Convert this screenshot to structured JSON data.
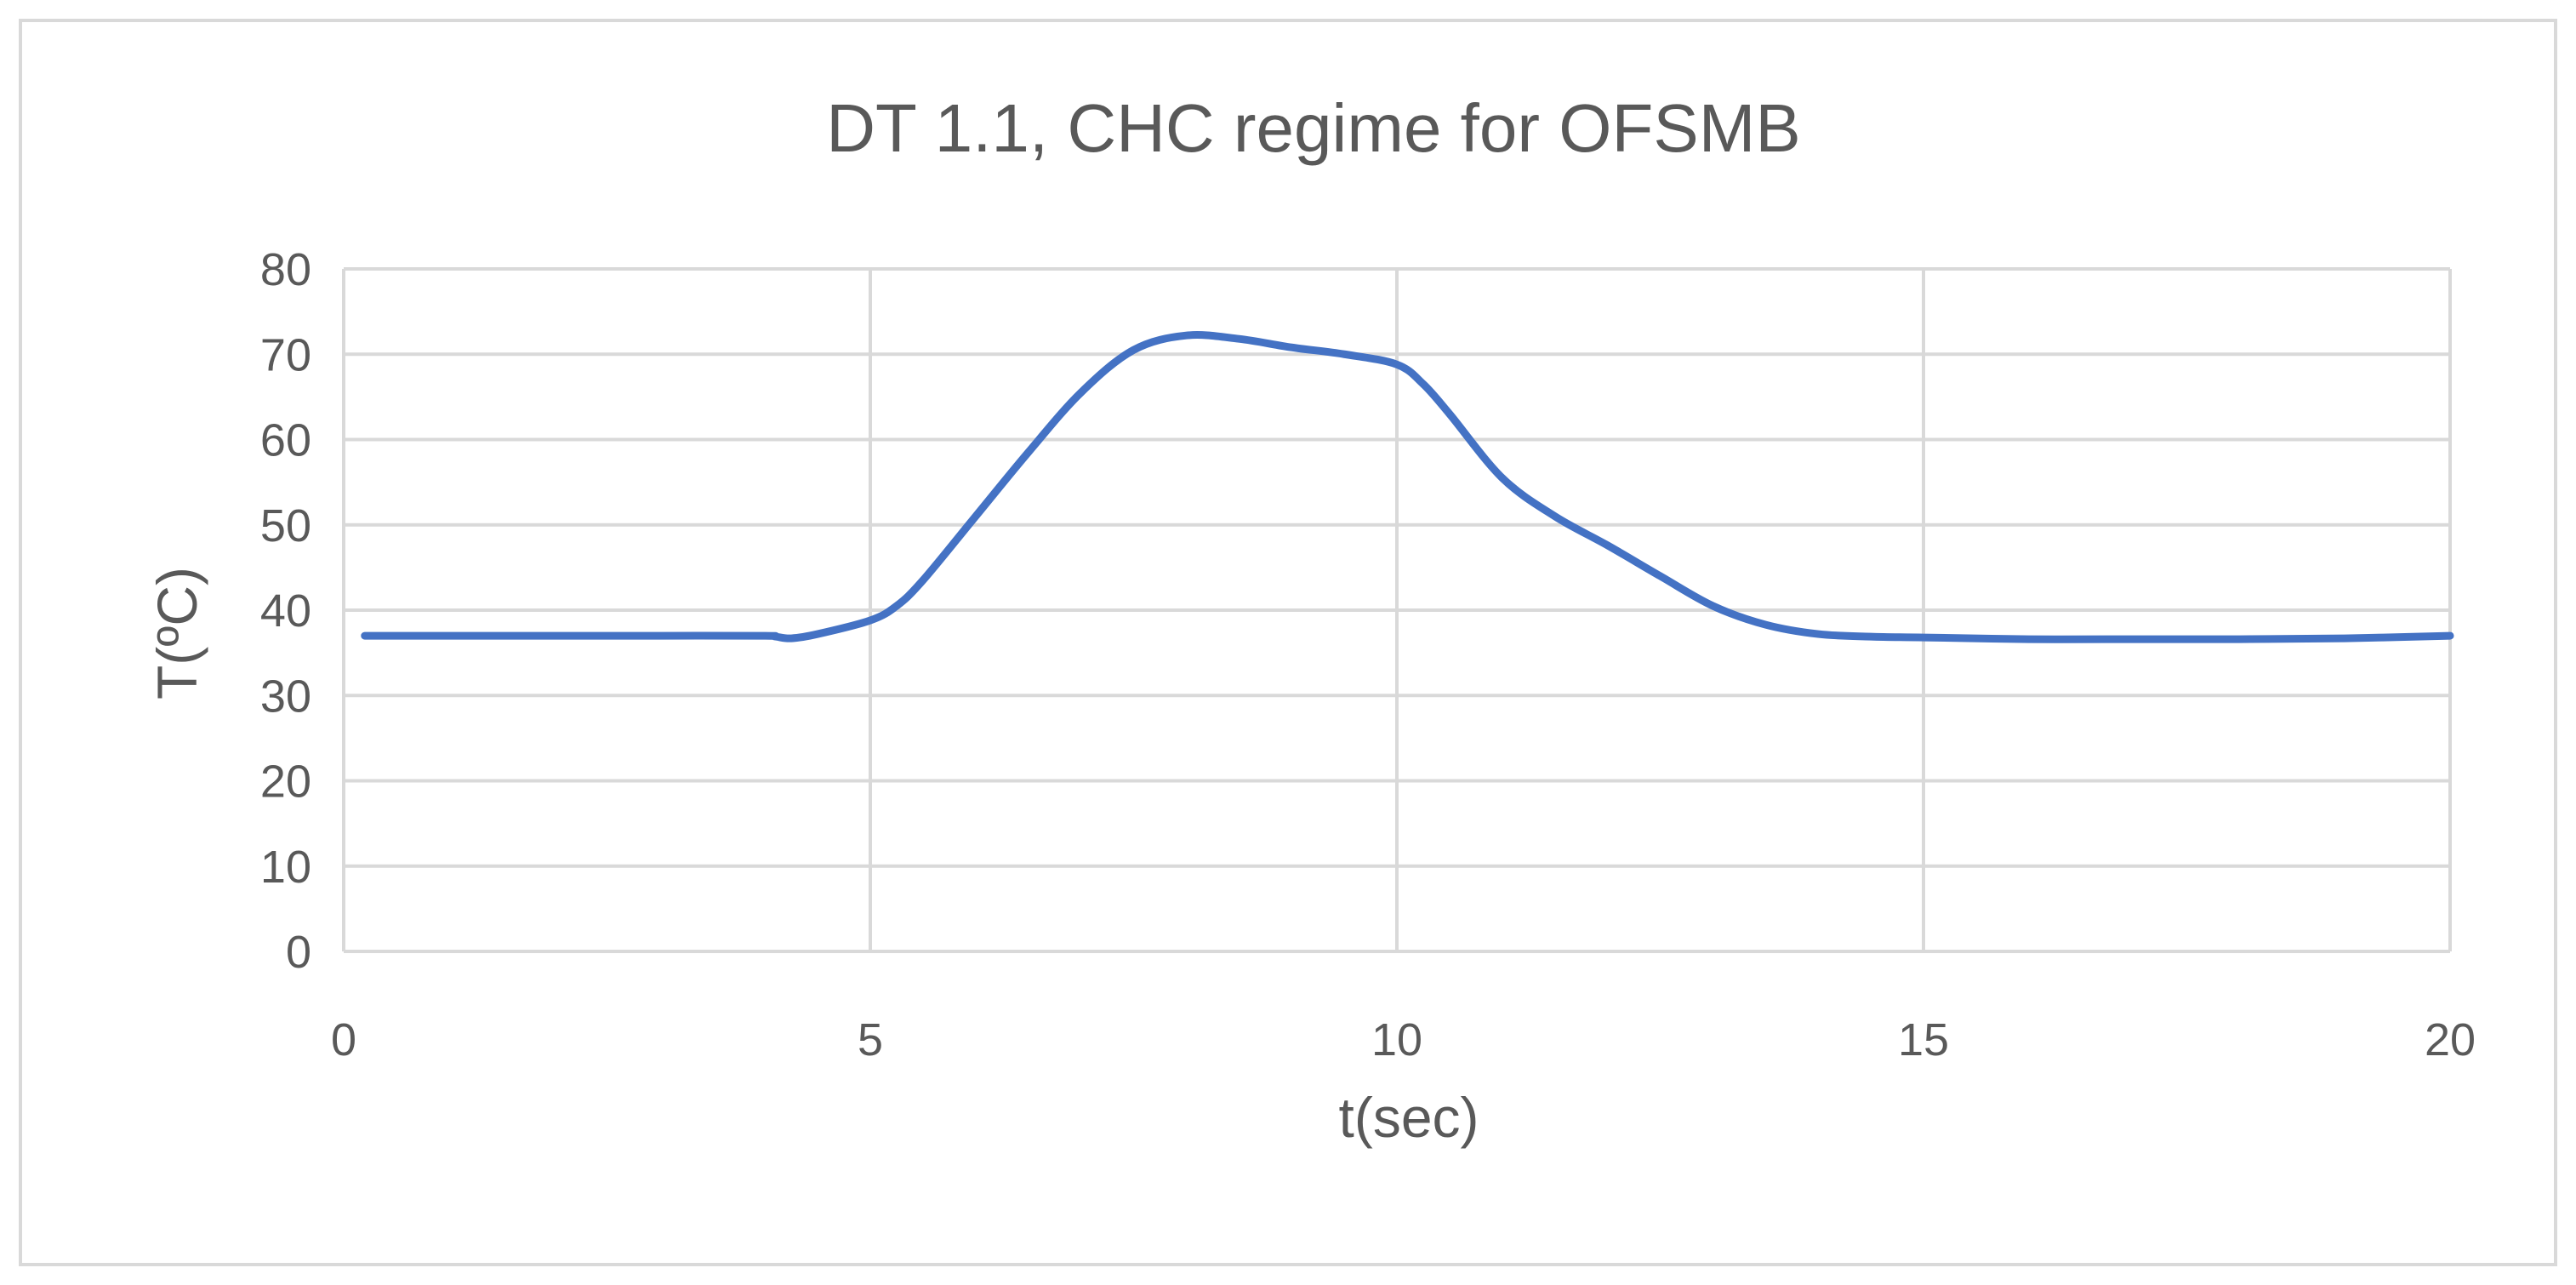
{
  "chart_data": {
    "type": "line",
    "title": "DT 1.1, CHC regime for OFSMB",
    "xlabel": "t(sec)",
    "ylabel": "T(ºC)",
    "xlim": [
      0,
      20
    ],
    "ylim": [
      0,
      80
    ],
    "x_ticks": [
      "0",
      "5",
      "10",
      "15",
      "20"
    ],
    "y_ticks": [
      "0",
      "10",
      "20",
      "30",
      "40",
      "50",
      "60",
      "70",
      "80"
    ],
    "grid": true,
    "legend": "none",
    "colors": {
      "series": "#4472c4",
      "grid": "#d9d9d9",
      "text": "#595959"
    },
    "series": [
      {
        "x": [
          0.2,
          1,
          2,
          3,
          4,
          4.1,
          4.25,
          4.5,
          5,
          5.25,
          5.5,
          6,
          6.5,
          7,
          7.5,
          8,
          8.5,
          9,
          9.5,
          10,
          10.25,
          10.5,
          11,
          11.5,
          12,
          12.5,
          13,
          13.5,
          14,
          14.5,
          15,
          16,
          17,
          18,
          19,
          20
        ],
        "y": [
          37,
          37,
          37,
          37,
          37,
          36.9,
          36.7,
          37.2,
          38.8,
          40.5,
          43.5,
          51,
          58.5,
          65.5,
          70.5,
          72.2,
          71.8,
          70.8,
          70,
          68.8,
          66.5,
          63,
          55.5,
          51,
          47.6,
          44,
          40.5,
          38.3,
          37.2,
          36.9,
          36.8,
          36.6,
          36.6,
          36.6,
          36.7,
          37
        ]
      }
    ]
  }
}
